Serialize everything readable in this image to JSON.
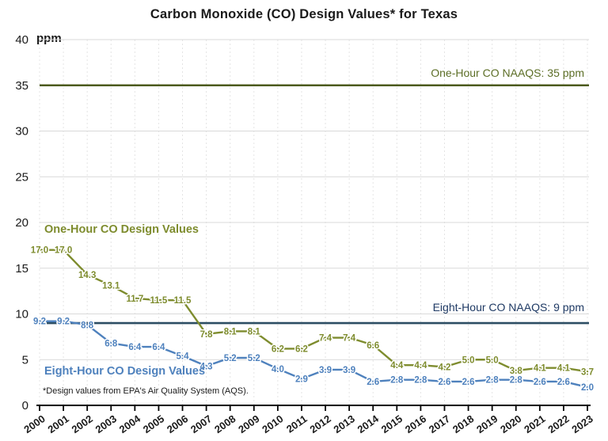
{
  "title": "Carbon Monoxide (CO) Design Values* for Texas",
  "y_unit_label": "ppm",
  "footnote": "*Design values from EPA's Air Quality System (AQS).",
  "annotations": {
    "one_hour_series_heading": "One-Hour CO Design Values",
    "eight_hour_series_heading": "Eight-Hour CO Design Values"
  },
  "colors": {
    "one_hour_series": "#7E8C2E",
    "eight_hour_series": "#4E81BD",
    "one_hour_naaqs_line": "#4C5B1E",
    "one_hour_naaqs_label": "#5C6E26",
    "eight_hour_naaqs_line": "#2C4D63",
    "eight_hour_naaqs_label": "#1F3A64",
    "h_gridline": "#d9d9d9",
    "v_gridline": "#e4e4e4",
    "axis": "#000000"
  },
  "chart_data": {
    "type": "line",
    "title": "Carbon Monoxide (CO) Design Values* for Texas",
    "xlabel": "",
    "ylabel": "ppm",
    "ylim": [
      0,
      40
    ],
    "yticks": [
      0,
      5,
      10,
      15,
      20,
      25,
      30,
      35,
      40
    ],
    "grid": true,
    "legend_position": "inline-annotations",
    "categories": [
      2000,
      2001,
      2002,
      2003,
      2004,
      2005,
      2006,
      2007,
      2008,
      2009,
      2010,
      2011,
      2012,
      2013,
      2014,
      2015,
      2016,
      2017,
      2018,
      2019,
      2020,
      2021,
      2022,
      2023
    ],
    "series": [
      {
        "name": "One-Hour CO Design Values",
        "color": "#7E8C2E",
        "values": [
          17.0,
          17.0,
          14.3,
          13.1,
          11.7,
          11.5,
          11.5,
          7.8,
          8.1,
          8.1,
          6.2,
          6.2,
          7.4,
          7.4,
          6.6,
          4.4,
          4.4,
          4.2,
          5.0,
          5.0,
          3.8,
          4.1,
          4.1,
          3.7
        ]
      },
      {
        "name": "Eight-Hour CO Design Values",
        "color": "#4E81BD",
        "values": [
          9.2,
          9.2,
          8.8,
          6.8,
          6.4,
          6.4,
          5.4,
          4.3,
          5.2,
          5.2,
          4.0,
          2.9,
          3.9,
          3.9,
          2.6,
          2.8,
          2.8,
          2.6,
          2.6,
          2.8,
          2.8,
          2.6,
          2.6,
          2.0
        ]
      }
    ],
    "reference_lines": [
      {
        "label": "One-Hour CO NAAQS: 35 ppm",
        "value": 35,
        "line_color": "#4C5B1E",
        "label_color": "#5C6E26"
      },
      {
        "label": "Eight-Hour CO NAAQS: 9 ppm",
        "value": 9,
        "line_color": "#2C4D63",
        "label_color": "#1F3A64"
      }
    ]
  }
}
